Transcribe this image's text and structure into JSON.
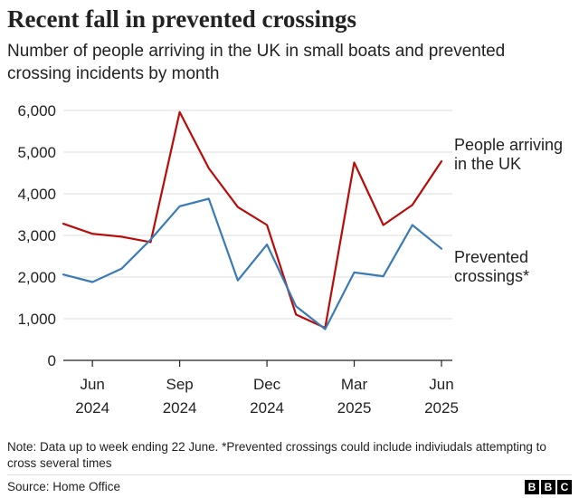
{
  "title": "Recent fall in prevented crossings",
  "subtitle": "Number of people arriving in the UK in small boats and prevented crossing incidents by month",
  "chart_data": {
    "type": "line",
    "title": "Recent fall in prevented crossings",
    "xlabel": "",
    "ylabel": "",
    "ylim": [
      0,
      6000
    ],
    "yticks": [
      0,
      1000,
      2000,
      3000,
      4000,
      5000,
      6000
    ],
    "ytick_labels": [
      "0",
      "1,000",
      "2,000",
      "3,000",
      "4,000",
      "5,000",
      "6,000"
    ],
    "x": [
      "2024-05",
      "2024-06",
      "2024-07",
      "2024-08",
      "2024-09",
      "2024-10",
      "2024-11",
      "2024-12",
      "2025-01",
      "2025-02",
      "2025-03",
      "2025-04",
      "2025-05",
      "2025-06"
    ],
    "xticks": [
      {
        "index": 1,
        "month": "Jun",
        "year": "2024"
      },
      {
        "index": 4,
        "month": "Sep",
        "year": "2024"
      },
      {
        "index": 7,
        "month": "Dec",
        "year": "2024"
      },
      {
        "index": 10,
        "month": "Mar",
        "year": "2025"
      },
      {
        "index": 13,
        "month": "Jun",
        "year": "2025"
      }
    ],
    "series": [
      {
        "name": "People arriving in the UK",
        "label_lines": [
          "People arriving",
          "in the UK"
        ],
        "color": "#b80c09",
        "values": [
          3280,
          3040,
          2970,
          2840,
          5960,
          4610,
          3680,
          3250,
          1100,
          780,
          4750,
          3250,
          3730,
          4780
        ]
      },
      {
        "name": "Prevented crossings*",
        "label_lines": [
          "Prevented",
          "crossings*"
        ],
        "color": "#3a7bb5",
        "values": [
          2060,
          1880,
          2200,
          2900,
          3700,
          3880,
          1920,
          2780,
          1300,
          750,
          2110,
          2020,
          3250,
          2680
        ]
      }
    ]
  },
  "note": "Note: Data up to week ending 22 June. *Prevented crossings could include indiviudals attempting to cross several times",
  "source": "Source: Home Office",
  "logo": [
    "B",
    "B",
    "C"
  ],
  "colors": {
    "gridline": "#dcdcdc",
    "axis": "#222222"
  }
}
